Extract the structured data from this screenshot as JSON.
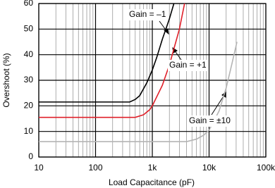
{
  "chart_data": {
    "type": "line",
    "x_label": "Load Capacitance (pF)",
    "y_label": "Overshoot (%)",
    "log_x": true,
    "grid": true,
    "xlim": [
      10,
      100000
    ],
    "ylim": [
      0,
      60
    ],
    "xticks": [
      10,
      100,
      {
        "value": 1000,
        "label": "1k"
      },
      {
        "value": 10000,
        "label": "10k"
      },
      {
        "value": 100000,
        "label": "100k"
      }
    ],
    "yticks": [
      0,
      10,
      20,
      30,
      40,
      50,
      60
    ],
    "series": [
      {
        "name": "Gain = –1",
        "color": "#000000",
        "x": [
          10,
          100,
          400,
          500,
          600,
          800,
          1000,
          1200,
          1500,
          2000,
          2400
        ],
        "values": [
          21.5,
          21.5,
          21.5,
          22.5,
          24,
          29,
          34,
          39,
          46,
          54,
          60
        ]
      },
      {
        "name": "Gain = +1",
        "color": "#e0202a",
        "x": [
          10,
          100,
          500,
          700,
          900,
          1000,
          1500,
          2000,
          3000,
          3700
        ],
        "values": [
          15.5,
          15.5,
          15.5,
          16.5,
          18.5,
          20,
          28,
          36,
          50,
          60
        ]
      },
      {
        "name": "Gain = ±10",
        "color": "#b4b4b4",
        "x": [
          10,
          100,
          1000,
          4000,
          6000,
          8000,
          10000,
          15000,
          20000,
          25000,
          31000
        ],
        "values": [
          6,
          6,
          6,
          6,
          7,
          8.5,
          10.5,
          18,
          27,
          36,
          45
        ]
      }
    ]
  }
}
